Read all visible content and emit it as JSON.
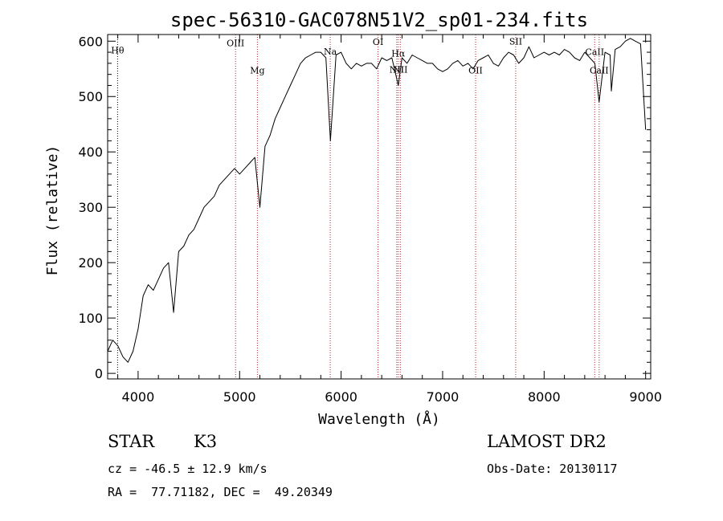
{
  "chart_data": {
    "type": "line",
    "title": "spec-56310-GAC078N51V2_sp01-234.fits",
    "xlabel": "Wavelength (Å)",
    "ylabel": "Flux (relative)",
    "xlim": [
      3700,
      9050
    ],
    "ylim": [
      -10,
      612
    ],
    "x_ticks": [
      4000,
      5000,
      6000,
      7000,
      8000,
      9000
    ],
    "y_ticks": [
      0,
      100,
      200,
      300,
      400,
      500,
      600
    ],
    "grid": false,
    "series": [
      {
        "x": [
          3700,
          3750,
          3800,
          3850,
          3900,
          3950,
          4000,
          4050,
          4100,
          4150,
          4200,
          4250,
          4300,
          4350,
          4400,
          4450,
          4500,
          4550,
          4600,
          4650,
          4700,
          4750,
          4800,
          4850,
          4900,
          4950,
          5000,
          5050,
          5100,
          5150,
          5200,
          5250,
          5300,
          5350,
          5400,
          5450,
          5500,
          5550,
          5600,
          5650,
          5700,
          5750,
          5800,
          5850,
          5895,
          5950,
          6000,
          6050,
          6100,
          6150,
          6200,
          6250,
          6300,
          6350,
          6400,
          6450,
          6500,
          6563,
          6600,
          6650,
          6700,
          6750,
          6800,
          6850,
          6900,
          6950,
          7000,
          7050,
          7100,
          7150,
          7200,
          7250,
          7300,
          7350,
          7400,
          7450,
          7500,
          7550,
          7600,
          7650,
          7700,
          7750,
          7800,
          7850,
          7900,
          7950,
          8000,
          8050,
          8100,
          8150,
          8200,
          8250,
          8300,
          8350,
          8400,
          8450,
          8500,
          8542,
          8600,
          8650,
          8662,
          8700,
          8750,
          8800,
          8850,
          8900,
          8950,
          9000
        ],
        "y": [
          40,
          60,
          50,
          30,
          20,
          40,
          80,
          140,
          160,
          150,
          170,
          190,
          200,
          110,
          220,
          230,
          250,
          260,
          280,
          300,
          310,
          320,
          340,
          350,
          360,
          370,
          360,
          370,
          380,
          390,
          300,
          410,
          430,
          460,
          480,
          500,
          520,
          540,
          560,
          570,
          575,
          580,
          580,
          570,
          420,
          575,
          580,
          560,
          550,
          560,
          555,
          560,
          560,
          550,
          570,
          565,
          570,
          520,
          570,
          560,
          575,
          570,
          565,
          560,
          560,
          550,
          545,
          550,
          560,
          565,
          555,
          560,
          550,
          565,
          570,
          575,
          560,
          555,
          570,
          580,
          575,
          560,
          570,
          590,
          570,
          575,
          580,
          575,
          580,
          575,
          585,
          580,
          570,
          565,
          580,
          570,
          560,
          490,
          580,
          575,
          510,
          585,
          590,
          600,
          605,
          600,
          595,
          440
        ]
      }
    ],
    "line_markers": [
      {
        "label": "Hθ",
        "x": 3798,
        "color": "#000000",
        "style": "dotted",
        "label_y": 578
      },
      {
        "label": "OIII",
        "x": 4960,
        "color": "#b22222",
        "style": "dotted",
        "label_y": 591
      },
      {
        "label": "Mg",
        "x": 5175,
        "color": "#b22222",
        "style": "dotted",
        "label_y": 542
      },
      {
        "label": "Na",
        "x": 5893,
        "color": "#b22222",
        "style": "dotted",
        "label_y": 576
      },
      {
        "label": "OI",
        "x": 6364,
        "color": "#b22222",
        "style": "dotted",
        "label_y": 593
      },
      {
        "label": "NII",
        "x": 6548,
        "color": "#b22222",
        "style": "dotted",
        "label_y": 543
      },
      {
        "label": "Hα",
        "x": 6563,
        "color": "#b22222",
        "style": "dotted",
        "label_y": 572
      },
      {
        "label": "NII",
        "x": 6583,
        "color": "#b22222",
        "style": "dotted",
        "label_y": 543
      },
      {
        "label": "OII",
        "x": 7325,
        "color": "#b22222",
        "style": "dotted",
        "label_y": 542
      },
      {
        "label": "SII",
        "x": 7720,
        "color": "#b22222",
        "style": "dotted",
        "label_y": 594
      },
      {
        "label": "CaII",
        "x": 8498,
        "color": "#b22222",
        "style": "dotted",
        "label_y": 575
      },
      {
        "label": "CaII",
        "x": 8542,
        "color": "#b22222",
        "style": "dotted",
        "label_y": 542
      }
    ],
    "line_color": "#000000"
  },
  "info": {
    "object_class": "STAR",
    "subclass": "K3",
    "survey": "LAMOST DR2",
    "cz": "cz = -46.5 ± 12.9 km/s",
    "obs_date": "Obs-Date: 20130117",
    "coords": "RA =  77.71182, DEC =  49.20349"
  }
}
